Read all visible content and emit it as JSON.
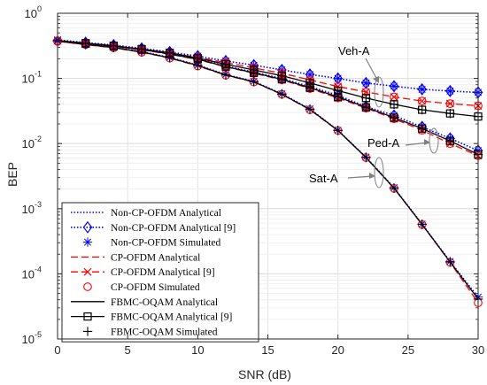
{
  "chart_data": {
    "type": "line",
    "xlabel": "SNR (dB)",
    "ylabel": "BEP",
    "xlim": [
      0,
      30
    ],
    "ylim": [
      1e-05,
      1
    ],
    "yscale": "log",
    "grid": true,
    "legend_placement": "bottom-left",
    "x_ticks": [
      0,
      5,
      10,
      15,
      20,
      25,
      30
    ],
    "x_tick_labels": [
      "0",
      "5",
      "10",
      "15",
      "20",
      "25",
      "30"
    ],
    "y_ticks": [
      1e-05,
      0.0001,
      0.001,
      0.01,
      0.1,
      1
    ],
    "y_tick_labels": [
      {
        "base": "10",
        "exp": "-5"
      },
      {
        "base": "10",
        "exp": "-4"
      },
      {
        "base": "10",
        "exp": "-3"
      },
      {
        "base": "10",
        "exp": "-2"
      },
      {
        "base": "10",
        "exp": "-1"
      },
      {
        "base": "10",
        "exp": "0"
      }
    ],
    "colors": {
      "blue": "#0000ff",
      "red": "#ff0000",
      "black": "#000000"
    },
    "channels": {
      "Sat-A": {
        "x": [
          0,
          2,
          4,
          6,
          8,
          10,
          12,
          14,
          16,
          18,
          20,
          22,
          24,
          26,
          28,
          30
        ],
        "non_cp": [
          0.375,
          0.335,
          0.3,
          0.258,
          0.21,
          0.16,
          0.115,
          0.09,
          0.058,
          0.034,
          0.016,
          0.0062,
          0.0021,
          0.00058,
          0.000155,
          4.4e-05
        ],
        "cp": [
          0.37,
          0.33,
          0.295,
          0.252,
          0.205,
          0.155,
          0.112,
          0.088,
          0.057,
          0.033,
          0.0158,
          0.0061,
          0.00205,
          0.00057,
          0.00015,
          3.6e-05
        ],
        "fbmc": [
          0.372,
          0.332,
          0.297,
          0.255,
          0.207,
          0.158,
          0.113,
          0.089,
          0.057,
          0.0335,
          0.0159,
          0.0061,
          0.00207,
          0.000575,
          0.000152,
          4.1e-05
        ]
      },
      "Ped-A": {
        "x": [
          0,
          2,
          4,
          6,
          8,
          10,
          12,
          14,
          16,
          18,
          20,
          22,
          24,
          26,
          28,
          30
        ],
        "non_cp": [
          0.38,
          0.345,
          0.315,
          0.28,
          0.24,
          0.2,
          0.155,
          0.125,
          0.1,
          0.075,
          0.055,
          0.037,
          0.027,
          0.018,
          0.012,
          0.0078
        ],
        "cp": [
          0.375,
          0.34,
          0.31,
          0.275,
          0.235,
          0.195,
          0.15,
          0.12,
          0.095,
          0.07,
          0.05,
          0.035,
          0.024,
          0.016,
          0.01,
          0.0065
        ],
        "fbmc": [
          0.377,
          0.342,
          0.312,
          0.277,
          0.237,
          0.197,
          0.152,
          0.122,
          0.097,
          0.072,
          0.052,
          0.036,
          0.025,
          0.017,
          0.011,
          0.0068
        ]
      },
      "Veh-A": {
        "x": [
          0,
          2,
          4,
          6,
          8,
          10,
          12,
          14,
          16,
          18,
          20,
          22,
          24,
          26,
          28,
          30
        ],
        "non_cp": [
          0.39,
          0.355,
          0.325,
          0.29,
          0.255,
          0.22,
          0.185,
          0.16,
          0.135,
          0.115,
          0.1,
          0.085,
          0.076,
          0.068,
          0.064,
          0.061
        ],
        "cp": [
          0.38,
          0.345,
          0.315,
          0.28,
          0.245,
          0.21,
          0.175,
          0.145,
          0.12,
          0.095,
          0.075,
          0.062,
          0.052,
          0.045,
          0.041,
          0.038
        ],
        "fbmc": [
          0.382,
          0.347,
          0.317,
          0.282,
          0.247,
          0.205,
          0.165,
          0.135,
          0.11,
          0.085,
          0.065,
          0.05,
          0.04,
          0.033,
          0.029,
          0.026
        ]
      }
    },
    "legend": [
      {
        "label": "Non-CP-OFDM Analytical",
        "color": "blue",
        "line": "dotted",
        "marker": "none"
      },
      {
        "label": "Non-CP-OFDM Analytical [9]",
        "color": "blue",
        "line": "dotted",
        "marker": "diamond"
      },
      {
        "label": "Non-CP-OFDM Simulated",
        "color": "blue",
        "line": "none",
        "marker": "asterisk"
      },
      {
        "label": "CP-OFDM Analytical",
        "color": "red",
        "line": "dashed",
        "marker": "none"
      },
      {
        "label": "CP-OFDM Analytical [9]",
        "color": "red",
        "line": "dashed",
        "marker": "x"
      },
      {
        "label": "CP-OFDM Simulated",
        "color": "red",
        "line": "none",
        "marker": "circle"
      },
      {
        "label": "FBMC-OQAM Analytical",
        "color": "black",
        "line": "solid",
        "marker": "none"
      },
      {
        "label": "FBMC-OQAM Analytical [9]",
        "color": "black",
        "line": "solid",
        "marker": "square"
      },
      {
        "label": "FBMC-OQAM Simulated",
        "color": "black",
        "line": "none",
        "marker": "plus"
      }
    ],
    "annotations": [
      "Veh-A",
      "Ped-A",
      "Sat-A"
    ]
  }
}
